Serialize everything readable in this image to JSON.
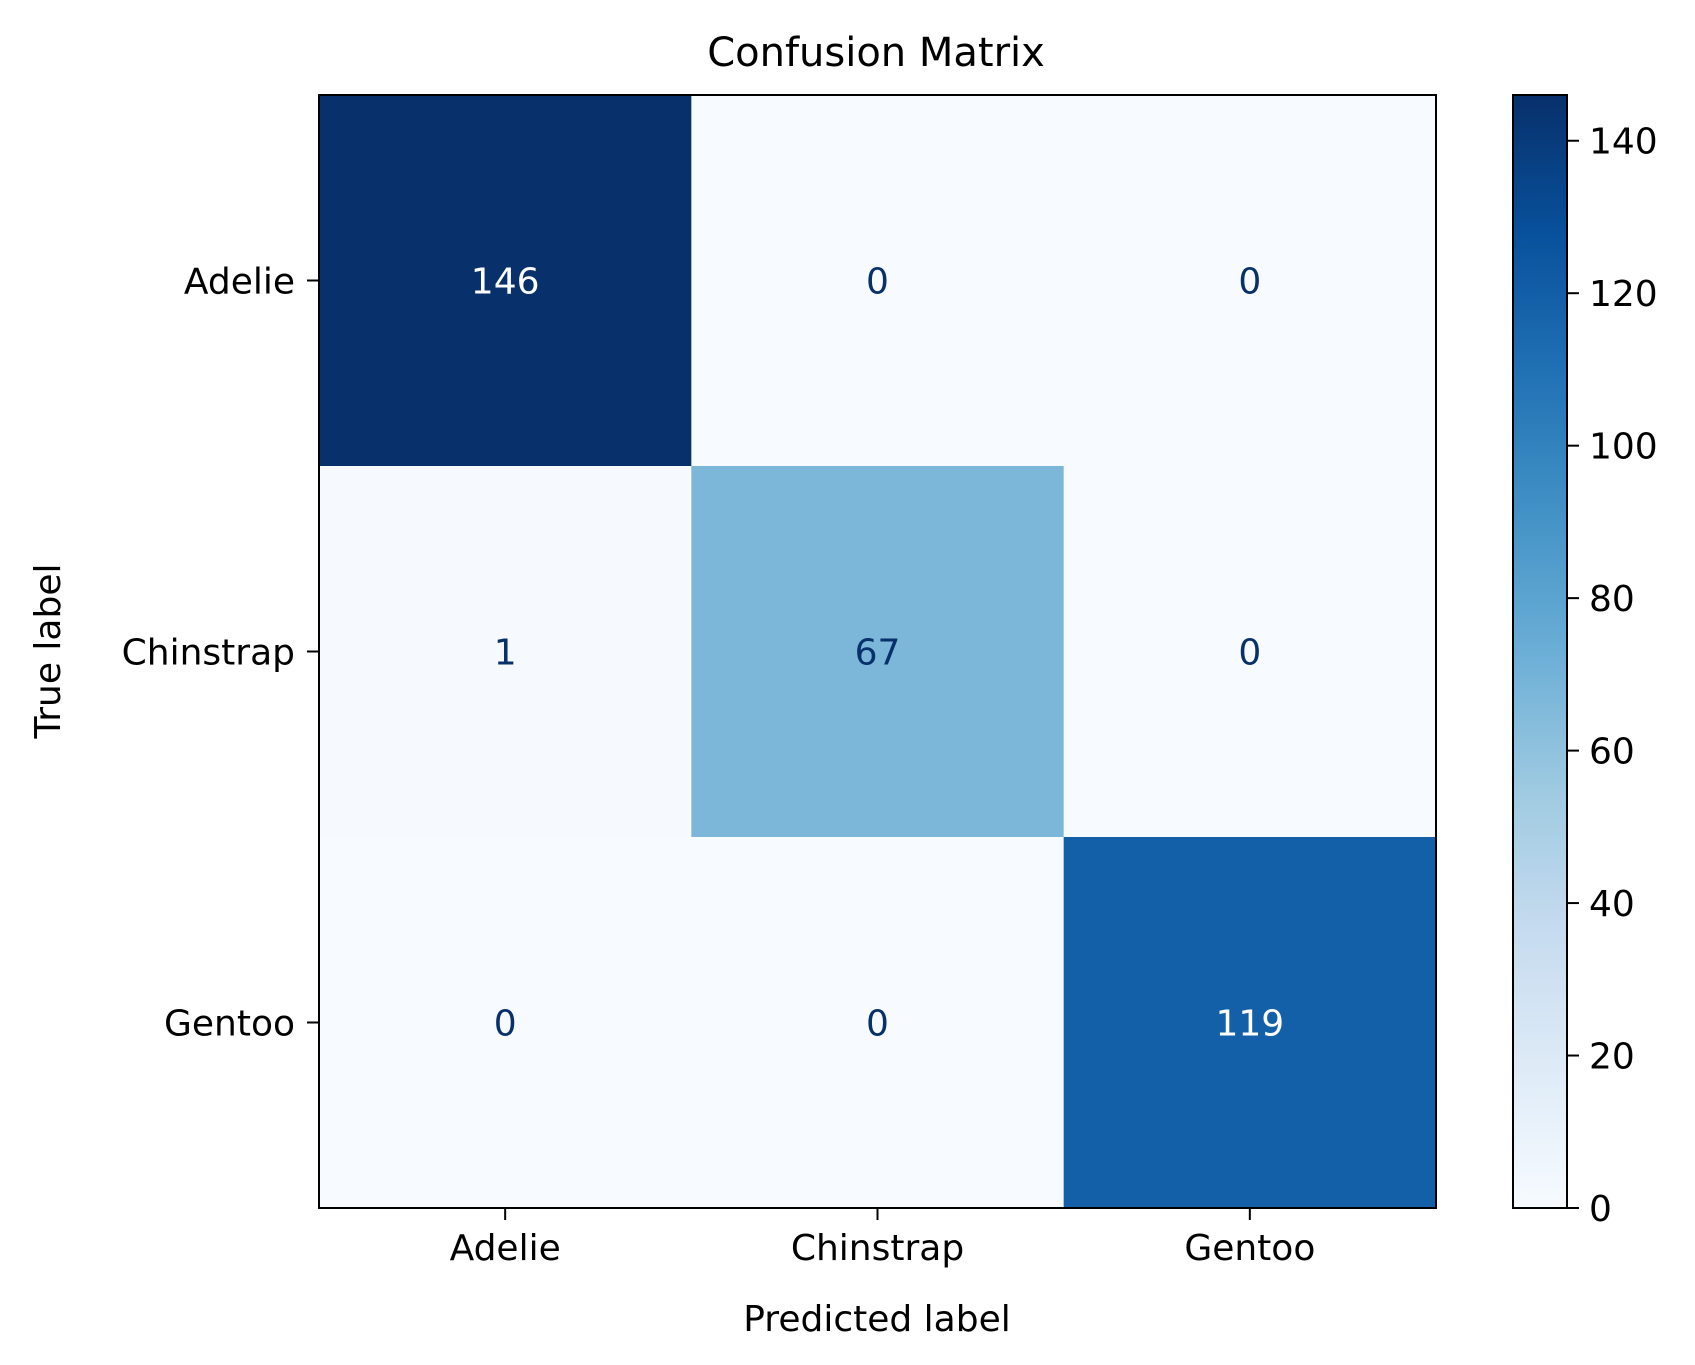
{
  "chart_data": {
    "type": "heatmap",
    "title": "Confusion Matrix",
    "xlabel": "Predicted label",
    "ylabel": "True label",
    "x_categories": [
      "Adelie",
      "Chinstrap",
      "Gentoo"
    ],
    "y_categories": [
      "Adelie",
      "Chinstrap",
      "Gentoo"
    ],
    "values": [
      [
        146,
        0,
        0
      ],
      [
        1,
        67,
        0
      ],
      [
        0,
        0,
        119
      ]
    ],
    "colormap": "Blues",
    "colorbar": {
      "range": [
        0,
        146
      ],
      "ticks": [
        0,
        20,
        40,
        60,
        80,
        100,
        120,
        140
      ],
      "tick_labels": [
        "0",
        "20",
        "40",
        "60",
        "80",
        "100",
        "120",
        "140"
      ]
    },
    "grid": false,
    "colors": {
      "text_dark": "#08306b",
      "text_light": "#ffffff",
      "axis": "#000000"
    }
  }
}
